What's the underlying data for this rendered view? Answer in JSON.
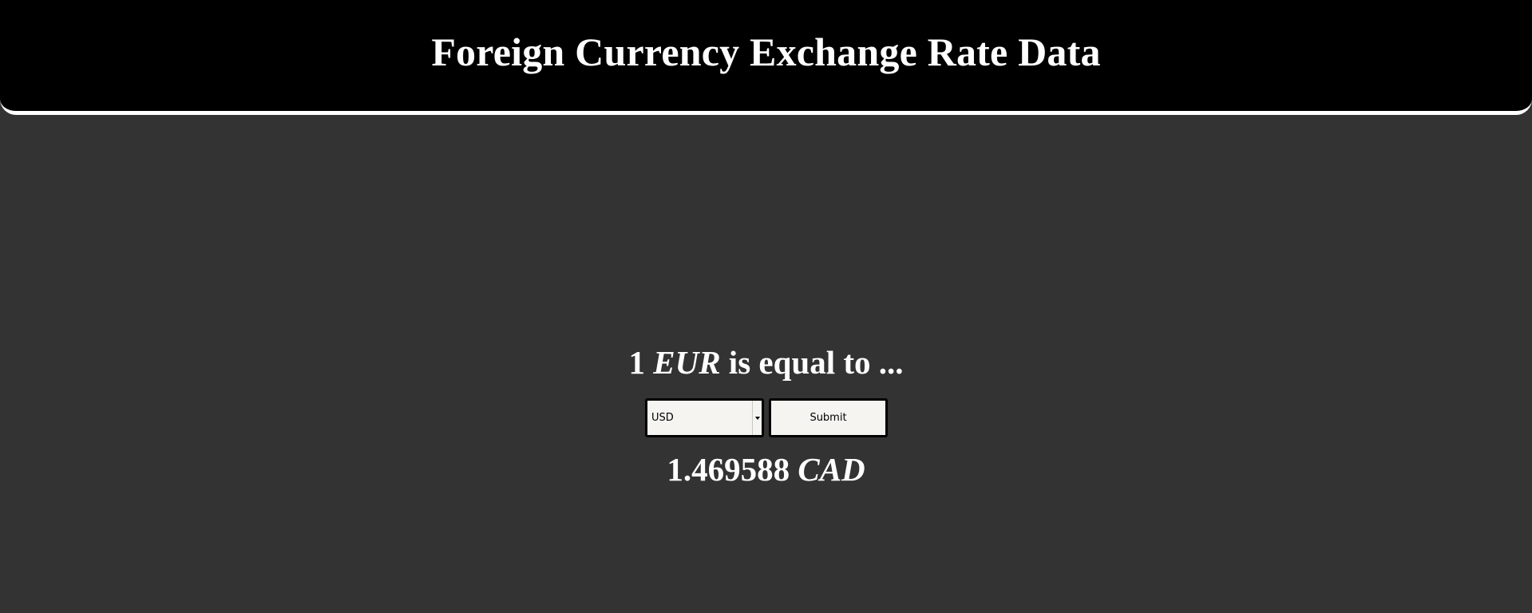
{
  "header": {
    "title": "Foreign Currency Exchange Rate Data"
  },
  "converter": {
    "amount": "1",
    "base_currency": "EUR",
    "question_suffix": "is equal to ...",
    "select": {
      "selected_value": "USD"
    },
    "submit_label": "Submit",
    "result": {
      "value": "1.469588",
      "currency": "CAD"
    }
  },
  "colors": {
    "header_bg": "#000000",
    "page_bg": "#333333",
    "text": "#ffffff",
    "control_bg": "#f5f4f1",
    "control_border": "#000000"
  },
  "icons": {
    "select_arrow": "chevron-down-icon"
  }
}
